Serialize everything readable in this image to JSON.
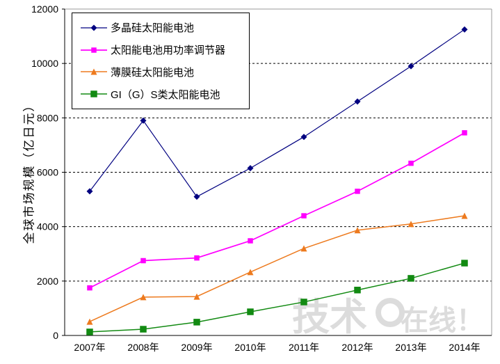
{
  "chart_data": {
    "type": "line",
    "title": "",
    "xlabel": "",
    "ylabel": "全球市场规模（亿日元）",
    "ylim": [
      0,
      12000
    ],
    "yticks": [
      0,
      2000,
      4000,
      6000,
      8000,
      10000,
      12000
    ],
    "grid": "horizontal-dashed",
    "legend_position": "top-left-inside",
    "categories": [
      "2007年",
      "2008年",
      "2009年",
      "2010年",
      "2011年",
      "2012年",
      "2013年",
      "2014年"
    ],
    "series": [
      {
        "name": "多晶硅太阳能电池",
        "color": "#000080",
        "marker": "diamond",
        "values": [
          5300,
          7900,
          5100,
          6150,
          7300,
          8600,
          9900,
          11250
        ]
      },
      {
        "name": "太阳能电池用功率调节器",
        "color": "#FF00FF",
        "marker": "square",
        "values": [
          1750,
          2750,
          2850,
          3480,
          4400,
          5300,
          6330,
          7450
        ]
      },
      {
        "name": "薄膜硅太阳能电池",
        "color": "#ED7A1E",
        "marker": "triangle",
        "values": [
          510,
          1410,
          1430,
          2330,
          3200,
          3870,
          4100,
          4400
        ]
      },
      {
        "name": "GI（G）S类太阳能电池",
        "color": "#128A12",
        "marker": "square",
        "values": [
          130,
          230,
          490,
          870,
          1230,
          1670,
          2100,
          2660
        ]
      }
    ]
  },
  "watermark": {
    "part_left": "技术",
    "part_right": "在线！"
  },
  "colors": {
    "background": "#FFFFFF",
    "axis": "#000000",
    "gridline": "#000000",
    "plot_border": "#999999",
    "legend_border": "#000000",
    "watermark": "#DCDCDC"
  }
}
